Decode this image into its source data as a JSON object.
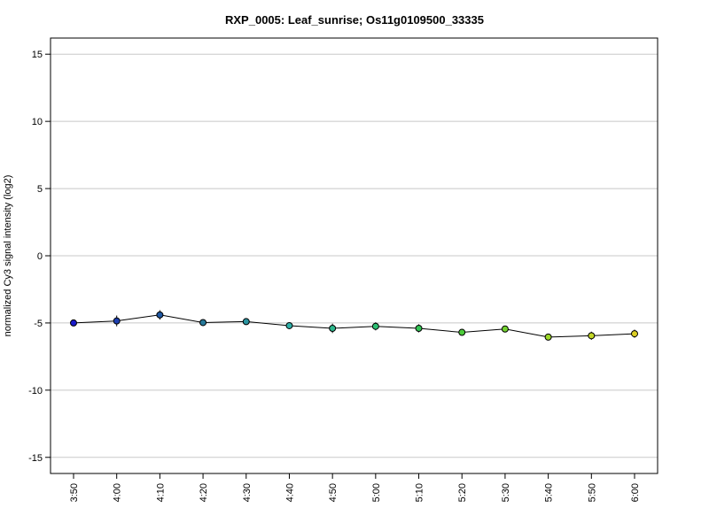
{
  "chart_data": {
    "type": "line",
    "title": "RXP_0005: Leaf_sunrise; Os11g0109500_33335",
    "xlabel": "",
    "ylabel": "normalized Cy3 signal intensity (log2)",
    "ylim": [
      -16.2,
      16.2
    ],
    "yticks": [
      -15,
      -10,
      -5,
      0,
      5,
      10,
      15
    ],
    "grid": true,
    "categories": [
      "3:50",
      "4:00",
      "4:10",
      "4:20",
      "4:30",
      "4:40",
      "4:50",
      "5:00",
      "5:10",
      "5:20",
      "5:30",
      "5:40",
      "5:50",
      "6:00"
    ],
    "values": [
      -5.0,
      -4.85,
      -4.4,
      -4.97,
      -4.9,
      -5.2,
      -5.4,
      -5.25,
      -5.4,
      -5.7,
      -5.45,
      -6.05,
      -5.95,
      -5.8
    ],
    "errors": [
      0.1,
      0.4,
      0.35,
      0.1,
      0.15,
      0.15,
      0.35,
      0.3,
      0.3,
      0.15,
      0.15,
      0.2,
      0.3,
      0.3
    ],
    "point_colors": [
      "#1a1acb",
      "#1d3fb0",
      "#1f58a3",
      "#27799a",
      "#2b94a0",
      "#2fb0a8",
      "#2cb88d",
      "#2cbf72",
      "#33c455",
      "#4ccb3b",
      "#72d22f",
      "#9cd829",
      "#c2d626",
      "#dccf24"
    ],
    "line_color": "#000000"
  }
}
